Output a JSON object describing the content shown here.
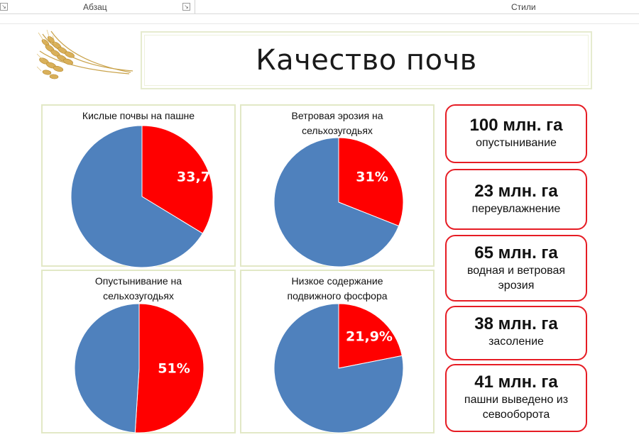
{
  "ribbon": {
    "left_launcher": "↘",
    "paragraph_label": "Абзац",
    "paragraph_launcher": "↘",
    "styles_label": "Стили"
  },
  "slide": {
    "title": "Качество почв"
  },
  "colors": {
    "accent_red": "#ff0000",
    "accent_blue": "#4f81bd",
    "panel_border": "#e2e8c6",
    "stat_border": "#e61c24"
  },
  "chart_data": [
    {
      "type": "pie",
      "title": "Кислые почвы на пашне",
      "slices": [
        {
          "value": 33.7,
          "color": "#ff0000",
          "label": "33,7%"
        },
        {
          "value": 66.3,
          "color": "#4f81bd"
        }
      ]
    },
    {
      "type": "pie",
      "title": "Ветровая эрозия на\nсельхозугодьях",
      "slices": [
        {
          "value": 31,
          "color": "#ff0000",
          "label": "31%"
        },
        {
          "value": 69,
          "color": "#4f81bd"
        }
      ]
    },
    {
      "type": "pie",
      "title": "Опустынивание на\nсельхозугодьях",
      "slices": [
        {
          "value": 51,
          "color": "#ff0000",
          "label": "51%"
        },
        {
          "value": 49,
          "color": "#4f81bd"
        }
      ]
    },
    {
      "type": "pie",
      "title": "Низкое содержание\nподвижного фосфора",
      "slices": [
        {
          "value": 21.9,
          "color": "#ff0000",
          "label": "21,9%"
        },
        {
          "value": 78.1,
          "color": "#4f81bd"
        }
      ]
    }
  ],
  "stats": [
    {
      "value": "100 млн. га",
      "desc": "опустынивание"
    },
    {
      "value": "23 млн. га",
      "desc": "переувлажнение"
    },
    {
      "value": "65 млн. га",
      "desc": "водная и ветровая\nэрозия"
    },
    {
      "value": "38 млн. га",
      "desc": "засоление"
    },
    {
      "value": "41 млн. га",
      "desc": "пашни выведено из\nсевооборота"
    }
  ]
}
